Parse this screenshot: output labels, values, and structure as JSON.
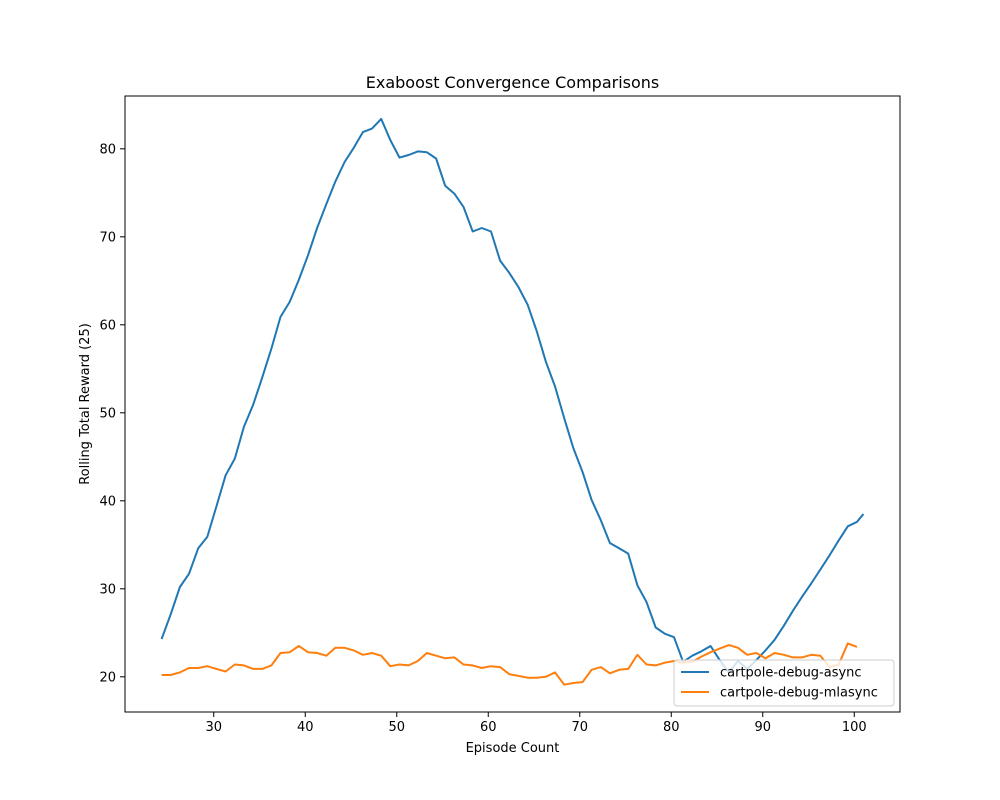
{
  "chart_data": {
    "type": "line",
    "title": "Exaboost Convergence Comparisons",
    "xlabel": "Episode Count",
    "ylabel": "Rolling Total Reward (25)",
    "xlim": [
      20.3,
      105
    ],
    "ylim": [
      16.0,
      86.0
    ],
    "xticks": [
      30,
      40,
      50,
      60,
      70,
      80,
      90,
      100
    ],
    "yticks": [
      20,
      30,
      40,
      50,
      60,
      70,
      80
    ],
    "grid": false,
    "legend_position": "lower-right",
    "series": [
      {
        "name": "cartpole-debug-async",
        "color": "#1f77b4",
        "x": [
          24.3,
          25.3,
          26.3,
          27.3,
          28.3,
          29.3,
          30.3,
          31.3,
          32.3,
          33.3,
          34.3,
          35.3,
          36.3,
          37.3,
          38.3,
          39.3,
          40.3,
          41.3,
          42.3,
          43.3,
          44.3,
          45.3,
          46.3,
          47.3,
          48.3,
          49.3,
          50.3,
          51.3,
          52.3,
          53.3,
          54.3,
          55.3,
          56.3,
          57.3,
          58.3,
          59.3,
          60.3,
          61.3,
          62.3,
          63.3,
          64.3,
          65.3,
          66.3,
          67.3,
          68.3,
          69.3,
          70.3,
          71.3,
          72.3,
          73.3,
          74.3,
          75.3,
          76.3,
          77.3,
          78.3,
          79.3,
          80.3,
          81.3,
          82.3,
          83.3,
          84.3,
          85.3,
          86.3,
          87.3,
          88.3,
          89.3,
          90.3,
          91.3,
          92.3,
          93.3,
          94.3,
          95.3,
          96.3,
          97.3,
          98.3,
          99.3,
          100.3,
          101.0
        ],
        "y": [
          24.3,
          27.1,
          30.2,
          31.7,
          34.6,
          35.9,
          39.4,
          42.9,
          44.8,
          48.4,
          50.9,
          54.0,
          57.3,
          60.9,
          62.6,
          65.1,
          67.9,
          71.0,
          73.7,
          76.3,
          78.5,
          80.1,
          81.9,
          82.3,
          83.4,
          81.0,
          79.0,
          79.3,
          79.7,
          79.6,
          78.9,
          75.8,
          74.9,
          73.4,
          70.6,
          71.0,
          70.6,
          67.3,
          65.9,
          64.3,
          62.3,
          59.3,
          55.8,
          53.0,
          49.4,
          46.0,
          43.3,
          40.1,
          37.8,
          35.2,
          34.6,
          34.0,
          30.4,
          28.5,
          25.6,
          24.9,
          24.5,
          21.7,
          22.4,
          22.9,
          23.5,
          21.9,
          20.5,
          21.8,
          20.9,
          21.9,
          23.0,
          24.2,
          25.8,
          27.5,
          29.1,
          30.6,
          32.2,
          33.8,
          35.5,
          37.1,
          37.6,
          38.5
        ]
      },
      {
        "name": "cartpole-debug-mlasync",
        "color": "#ff7f0e",
        "x": [
          24.3,
          25.3,
          26.3,
          27.3,
          28.3,
          29.3,
          30.3,
          31.3,
          32.3,
          33.3,
          34.3,
          35.3,
          36.3,
          37.3,
          38.3,
          39.3,
          40.3,
          41.3,
          42.3,
          43.3,
          44.3,
          45.3,
          46.3,
          47.3,
          48.3,
          49.3,
          50.3,
          51.3,
          52.3,
          53.3,
          54.3,
          55.3,
          56.3,
          57.3,
          58.3,
          59.3,
          60.3,
          61.3,
          62.3,
          63.3,
          64.3,
          65.3,
          66.3,
          67.3,
          68.3,
          69.3,
          70.3,
          71.3,
          72.3,
          73.3,
          74.3,
          75.3,
          76.3,
          77.3,
          78.3,
          79.3,
          80.3,
          81.3,
          82.3,
          83.3,
          84.3,
          85.3,
          86.3,
          87.3,
          88.3,
          89.3,
          90.3,
          91.3,
          92.3,
          93.3,
          94.3,
          95.3,
          96.3,
          97.3,
          98.3,
          99.3,
          100.3
        ],
        "y": [
          20.2,
          20.2,
          20.5,
          21.0,
          21.0,
          21.2,
          20.9,
          20.6,
          21.4,
          21.3,
          20.9,
          20.9,
          21.3,
          22.7,
          22.8,
          23.5,
          22.8,
          22.7,
          22.4,
          23.3,
          23.3,
          23.0,
          22.5,
          22.7,
          22.4,
          21.2,
          21.4,
          21.3,
          21.8,
          22.7,
          22.4,
          22.1,
          22.2,
          21.4,
          21.3,
          21.0,
          21.2,
          21.1,
          20.3,
          20.1,
          19.9,
          19.9,
          20.0,
          20.5,
          19.1,
          19.3,
          19.4,
          20.8,
          21.1,
          20.4,
          20.8,
          20.9,
          22.5,
          21.4,
          21.3,
          21.6,
          21.8,
          21.6,
          21.7,
          22.3,
          22.8,
          23.2,
          23.6,
          23.3,
          22.5,
          22.7,
          22.1,
          22.7,
          22.5,
          22.2,
          22.2,
          22.5,
          22.4,
          21.1,
          21.4,
          23.8,
          23.4
        ]
      }
    ]
  }
}
